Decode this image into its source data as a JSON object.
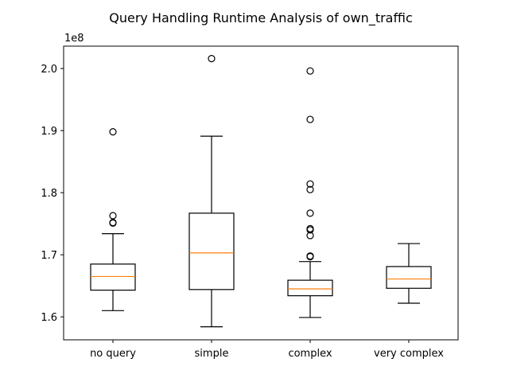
{
  "chart_data": {
    "type": "box",
    "title": "Query Handling Runtime Analysis of own_traffic",
    "xlabel": "",
    "ylabel": "",
    "y_multiplier_label": "1e8",
    "ylim": [
      1.563,
      2.036
    ],
    "yticks": [
      1.6,
      1.7,
      1.8,
      1.9,
      2.0
    ],
    "ytick_labels": [
      "1.6",
      "1.7",
      "1.8",
      "1.9",
      "2.0"
    ],
    "grid": false,
    "categories": [
      "no query",
      "simple",
      "complex",
      "very complex"
    ],
    "boxes": [
      {
        "category": "no query",
        "whisker_low": 1.61,
        "q1": 1.643,
        "median": 1.665,
        "q3": 1.685,
        "whisker_high": 1.734,
        "outliers": [
          1.751,
          1.752,
          1.763,
          1.898
        ]
      },
      {
        "category": "simple",
        "whisker_low": 1.584,
        "q1": 1.644,
        "median": 1.703,
        "q3": 1.767,
        "whisker_high": 1.891,
        "outliers": [
          2.016
        ]
      },
      {
        "category": "complex",
        "whisker_low": 1.599,
        "q1": 1.634,
        "median": 1.645,
        "q3": 1.659,
        "whisker_high": 1.689,
        "outliers": [
          1.697,
          1.698,
          1.731,
          1.74,
          1.742,
          1.767,
          1.805,
          1.814,
          1.918,
          1.996
        ]
      },
      {
        "category": "very complex",
        "whisker_low": 1.622,
        "q1": 1.646,
        "median": 1.661,
        "q3": 1.681,
        "whisker_high": 1.718,
        "outliers": []
      }
    ],
    "colors": {
      "box": "#000000",
      "median": "#ff7f0e",
      "outlier": "#000000",
      "background": "#ffffff"
    }
  }
}
